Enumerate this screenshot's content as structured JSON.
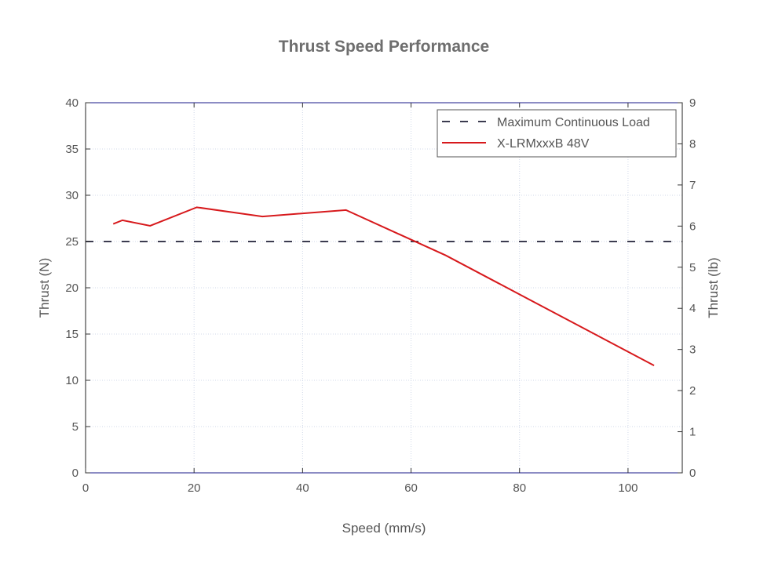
{
  "chart_data": {
    "type": "line",
    "title": "Thrust Speed Performance",
    "xlabel": "Speed (mm/s)",
    "ylabel": "Thrust (N)",
    "ylabel_right": "Thrust (lb)",
    "xlim": [
      0,
      110
    ],
    "ylim": [
      0,
      40
    ],
    "ylim_right": [
      0,
      9
    ],
    "xticks": [
      "0",
      "20",
      "40",
      "60",
      "80",
      "100"
    ],
    "yticks": [
      "0",
      "5",
      "10",
      "15",
      "20",
      "25",
      "30",
      "35",
      "40"
    ],
    "yticks_right": [
      "0",
      "1",
      "2",
      "3",
      "4",
      "5",
      "6",
      "7",
      "8",
      "9"
    ],
    "grid": true,
    "legend_position": "top-right",
    "series": [
      {
        "name": "Maximum Continuous Load",
        "style": "dashed",
        "color": "#3c3c50",
        "x": [
          0,
          110
        ],
        "y": [
          25,
          25
        ]
      },
      {
        "name": "X-LRMxxxB 48V",
        "style": "solid",
        "color": "#d7191c",
        "x": [
          5.1,
          6.8,
          11.9,
          20.5,
          32.6,
          48.0,
          66.4,
          104.8
        ],
        "y": [
          26.9,
          27.3,
          26.7,
          28.7,
          27.7,
          28.4,
          23.5,
          11.6
        ]
      }
    ]
  }
}
